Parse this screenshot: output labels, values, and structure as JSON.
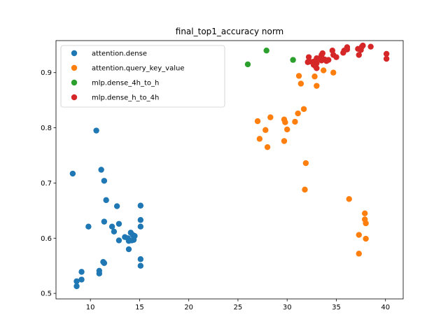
{
  "chart_data": {
    "type": "scatter",
    "title": "final_top1_accuracy  norm",
    "xlabel": "",
    "ylabel": "",
    "xlim": [
      6.5,
      41.8
    ],
    "ylim": [
      0.49,
      0.958
    ],
    "xticks": [
      10,
      15,
      20,
      25,
      30,
      35,
      40
    ],
    "yticks": [
      0.5,
      0.6,
      0.7,
      0.8,
      0.9
    ],
    "xtick_labels": [
      "10",
      "15",
      "20",
      "25",
      "30",
      "35",
      "40"
    ],
    "ytick_labels": [
      "0.5",
      "0.6",
      "0.7",
      "0.8",
      "0.9"
    ],
    "grid": false,
    "legend_position": "top-left",
    "series": [
      {
        "name": "attention.dense",
        "color": "#1f77b4",
        "x": [
          8.2,
          10.6,
          11.1,
          11.4,
          11.6,
          9.8,
          12.7,
          11.4,
          12.9,
          12.2,
          12.4,
          12.9,
          13.5,
          13.8,
          14.1,
          14.3,
          14.5,
          13.9,
          14.2,
          14.4,
          15.1,
          15.1,
          15.1,
          8.6,
          8.6,
          9.1,
          9.1,
          10.9,
          10.9,
          11.4,
          11.3,
          15.1,
          15.1,
          13.9
        ],
        "y": [
          0.717,
          0.795,
          0.724,
          0.704,
          0.669,
          0.621,
          0.658,
          0.63,
          0.626,
          0.621,
          0.612,
          0.596,
          0.602,
          0.6,
          0.61,
          0.606,
          0.604,
          0.595,
          0.596,
          0.597,
          0.659,
          0.633,
          0.621,
          0.522,
          0.513,
          0.539,
          0.525,
          0.541,
          0.536,
          0.555,
          0.557,
          0.562,
          0.55,
          0.58
        ]
      },
      {
        "name": "attention.query_key_value",
        "color": "#ff7f0e",
        "x": [
          27.0,
          28.3,
          27.8,
          27.2,
          28.0,
          29.7,
          29.8,
          30.0,
          29.7,
          30.8,
          31.1,
          31.7,
          31.2,
          31.4,
          32.8,
          33.0,
          33.7,
          34.7,
          31.9,
          31.8,
          36.3,
          37.9,
          37.9,
          38.0,
          37.3,
          38.0,
          37.3
        ],
        "y": [
          0.812,
          0.819,
          0.796,
          0.78,
          0.765,
          0.815,
          0.81,
          0.797,
          0.776,
          0.811,
          0.826,
          0.834,
          0.894,
          0.88,
          0.893,
          0.876,
          0.904,
          0.9,
          0.736,
          0.688,
          0.671,
          0.645,
          0.634,
          0.627,
          0.606,
          0.599,
          0.572
        ]
      },
      {
        "name": "mlp.dense_4h_to_h",
        "color": "#2ca02c",
        "x": [
          26.0,
          27.9,
          30.6
        ],
        "y": [
          0.915,
          0.94,
          0.923
        ]
      },
      {
        "name": "mlp.dense_h_to_4h",
        "color": "#d62728",
        "x": [
          32.2,
          32.7,
          33.0,
          33.5,
          33.6,
          34.0,
          34.6,
          35.0,
          35.8,
          36.1,
          37.2,
          37.5,
          37.7,
          38.5,
          40.1,
          40.1,
          32.3,
          32.7,
          33.0,
          33.3,
          33.8,
          34.2,
          34.7,
          35.7,
          36.1,
          37.3,
          37.6,
          32.9,
          33.5,
          32.1,
          33.0
        ],
        "y": [
          0.928,
          0.92,
          0.926,
          0.932,
          0.935,
          0.921,
          0.94,
          0.928,
          0.94,
          0.946,
          0.943,
          0.941,
          0.949,
          0.947,
          0.934,
          0.925,
          0.92,
          0.914,
          0.908,
          0.926,
          0.924,
          0.923,
          0.932,
          0.936,
          0.942,
          0.932,
          0.947,
          0.911,
          0.922,
          0.919,
          0.917
        ]
      }
    ]
  }
}
